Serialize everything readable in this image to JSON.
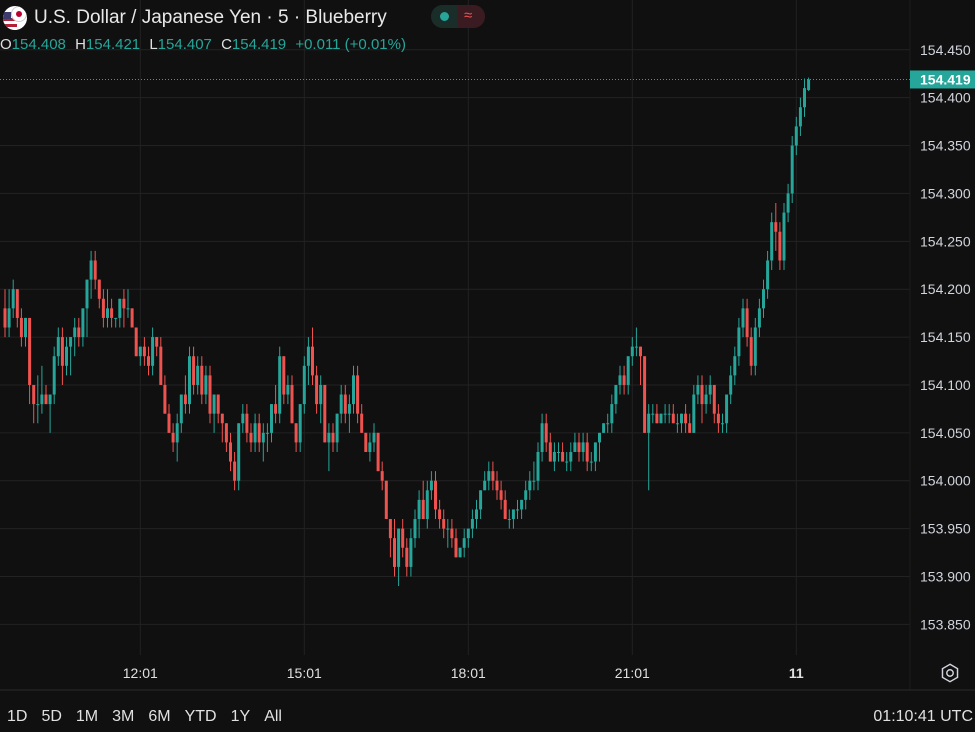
{
  "header": {
    "title": "U.S. Dollar / Japanese Yen · 5 · Blueberry",
    "status_icon": "market-open-dot",
    "extra_icon": "tilde-wave-icon",
    "ohlc": {
      "open_label": "O",
      "open": "154.408",
      "high_label": "H",
      "high": "154.421",
      "low_label": "L",
      "low": "154.407",
      "close_label": "C",
      "close": "154.419",
      "change": "+0.011 (+0.01%)"
    }
  },
  "colors": {
    "background": "#101010",
    "up": "#26a69a",
    "down": "#ef5350",
    "grid": "#222222",
    "text": "#d1d4dc"
  },
  "chart_data": {
    "type": "candlestick",
    "symbol": "USDJPY",
    "interval": "5",
    "current_price_label": "154.419",
    "y_axis_ticks": [
      "154.450",
      "154.400",
      "154.350",
      "154.300",
      "154.250",
      "154.200",
      "154.150",
      "154.100",
      "154.050",
      "154.000",
      "153.950",
      "153.900",
      "153.850"
    ],
    "y_tick_values": [
      154.45,
      154.4,
      154.35,
      154.3,
      154.25,
      154.2,
      154.15,
      154.1,
      154.05,
      154.0,
      153.95,
      153.9,
      153.85
    ],
    "ylim": [
      153.818,
      154.502
    ],
    "x_axis_ticks": [
      {
        "label": "12:01",
        "index": 33
      },
      {
        "label": "15:01",
        "index": 73
      },
      {
        "label": "18:01",
        "index": 113
      },
      {
        "label": "21:01",
        "index": 153
      },
      {
        "label": "11",
        "index": 193
      }
    ],
    "candles": [
      [
        154.18,
        154.2,
        154.15,
        154.16
      ],
      [
        154.16,
        154.2,
        154.15,
        154.18
      ],
      [
        154.18,
        154.21,
        154.17,
        154.2
      ],
      [
        154.2,
        154.2,
        154.16,
        154.17
      ],
      [
        154.17,
        154.18,
        154.14,
        154.15
      ],
      [
        154.15,
        154.17,
        154.14,
        154.17
      ],
      [
        154.17,
        154.17,
        154.08,
        154.1
      ],
      [
        154.1,
        154.1,
        154.06,
        154.08
      ],
      [
        154.08,
        154.11,
        154.06,
        154.08
      ],
      [
        154.08,
        154.12,
        154.07,
        154.09
      ],
      [
        154.09,
        154.1,
        154.08,
        154.08
      ],
      [
        154.08,
        154.09,
        154.05,
        154.09
      ],
      [
        154.09,
        154.14,
        154.08,
        154.13
      ],
      [
        154.13,
        154.16,
        154.12,
        154.15
      ],
      [
        154.15,
        154.16,
        154.1,
        154.12
      ],
      [
        154.12,
        154.15,
        154.11,
        154.14
      ],
      [
        154.14,
        154.15,
        154.11,
        154.15
      ],
      [
        154.15,
        154.17,
        154.13,
        154.16
      ],
      [
        154.16,
        154.17,
        154.14,
        154.15
      ],
      [
        154.15,
        154.18,
        154.14,
        154.18
      ],
      [
        154.18,
        154.21,
        154.15,
        154.21
      ],
      [
        154.21,
        154.24,
        154.19,
        154.23
      ],
      [
        154.23,
        154.24,
        154.2,
        154.21
      ],
      [
        154.21,
        154.21,
        154.18,
        154.19
      ],
      [
        154.19,
        154.2,
        154.16,
        154.17
      ],
      [
        154.17,
        154.2,
        154.16,
        154.18
      ],
      [
        154.18,
        154.19,
        154.16,
        154.17
      ],
      [
        154.17,
        154.17,
        154.16,
        154.17
      ],
      [
        154.17,
        154.19,
        154.16,
        154.19
      ],
      [
        154.19,
        154.2,
        154.16,
        154.18
      ],
      [
        154.18,
        154.2,
        154.17,
        154.18
      ],
      [
        154.18,
        154.18,
        154.16,
        154.16
      ],
      [
        154.16,
        154.16,
        154.13,
        154.13
      ],
      [
        154.13,
        154.14,
        154.12,
        154.14
      ],
      [
        154.14,
        154.15,
        154.12,
        154.13
      ],
      [
        154.13,
        154.14,
        154.11,
        154.12
      ],
      [
        154.12,
        154.16,
        154.11,
        154.15
      ],
      [
        154.15,
        154.15,
        154.13,
        154.14
      ],
      [
        154.14,
        154.15,
        154.1,
        154.1
      ],
      [
        154.1,
        154.11,
        154.07,
        154.07
      ],
      [
        154.07,
        154.08,
        154.05,
        154.05
      ],
      [
        154.05,
        154.06,
        154.03,
        154.04
      ],
      [
        154.04,
        154.07,
        154.02,
        154.06
      ],
      [
        154.06,
        154.09,
        154.05,
        154.09
      ],
      [
        154.09,
        154.11,
        154.07,
        154.08
      ],
      [
        154.08,
        154.14,
        154.07,
        154.13
      ],
      [
        154.13,
        154.14,
        154.09,
        154.1
      ],
      [
        154.1,
        154.13,
        154.09,
        154.12
      ],
      [
        154.12,
        154.13,
        154.08,
        154.09
      ],
      [
        154.09,
        154.12,
        154.08,
        154.11
      ],
      [
        154.11,
        154.12,
        154.06,
        154.07
      ],
      [
        154.07,
        154.09,
        154.05,
        154.09
      ],
      [
        154.09,
        154.09,
        154.06,
        154.07
      ],
      [
        154.07,
        154.07,
        154.04,
        154.06
      ],
      [
        154.06,
        154.06,
        154.03,
        154.04
      ],
      [
        154.04,
        154.05,
        154.01,
        154.02
      ],
      [
        154.02,
        154.03,
        153.99,
        154.0
      ],
      [
        154.0,
        154.06,
        153.99,
        154.06
      ],
      [
        154.06,
        154.08,
        154.05,
        154.07
      ],
      [
        154.07,
        154.08,
        154.04,
        154.05
      ],
      [
        154.05,
        154.06,
        154.03,
        154.04
      ],
      [
        154.04,
        154.07,
        154.03,
        154.06
      ],
      [
        154.06,
        154.07,
        154.03,
        154.04
      ],
      [
        154.04,
        154.06,
        154.02,
        154.05
      ],
      [
        154.05,
        154.06,
        154.03,
        154.05
      ],
      [
        154.05,
        154.08,
        154.04,
        154.08
      ],
      [
        154.08,
        154.1,
        154.06,
        154.07
      ],
      [
        154.07,
        154.14,
        154.06,
        154.13
      ],
      [
        154.13,
        154.13,
        154.08,
        154.09
      ],
      [
        154.09,
        154.11,
        154.08,
        154.1
      ],
      [
        154.1,
        154.11,
        154.06,
        154.06
      ],
      [
        154.06,
        154.06,
        154.03,
        154.04
      ],
      [
        154.04,
        154.08,
        154.03,
        154.08
      ],
      [
        154.08,
        154.13,
        154.07,
        154.12
      ],
      [
        154.12,
        154.15,
        154.1,
        154.14
      ],
      [
        154.14,
        154.16,
        154.1,
        154.11
      ],
      [
        154.11,
        154.12,
        154.07,
        154.08
      ],
      [
        154.08,
        154.11,
        154.06,
        154.1
      ],
      [
        154.1,
        154.1,
        154.04,
        154.04
      ],
      [
        154.04,
        154.06,
        154.01,
        154.05
      ],
      [
        154.05,
        154.06,
        154.03,
        154.04
      ],
      [
        154.04,
        154.07,
        154.03,
        154.07
      ],
      [
        154.07,
        154.1,
        154.06,
        154.09
      ],
      [
        154.09,
        154.1,
        154.06,
        154.07
      ],
      [
        154.07,
        154.09,
        154.05,
        154.08
      ],
      [
        154.08,
        154.12,
        154.07,
        154.11
      ],
      [
        154.11,
        154.12,
        154.06,
        154.07
      ],
      [
        154.07,
        154.08,
        154.05,
        154.05
      ],
      [
        154.05,
        154.05,
        154.03,
        154.03
      ],
      [
        154.03,
        154.05,
        154.02,
        154.04
      ],
      [
        154.04,
        154.06,
        154.03,
        154.05
      ],
      [
        154.05,
        154.05,
        154.01,
        154.01
      ],
      [
        154.01,
        154.02,
        153.99,
        154.0
      ],
      [
        154.0,
        154.0,
        153.96,
        153.96
      ],
      [
        153.96,
        153.96,
        153.92,
        153.94
      ],
      [
        153.94,
        153.96,
        153.9,
        153.91
      ],
      [
        153.91,
        153.95,
        153.89,
        153.95
      ],
      [
        153.95,
        153.96,
        153.92,
        153.93
      ],
      [
        153.93,
        153.94,
        153.9,
        153.91
      ],
      [
        153.91,
        153.95,
        153.9,
        153.94
      ],
      [
        153.94,
        153.97,
        153.93,
        153.96
      ],
      [
        153.96,
        153.99,
        153.94,
        153.98
      ],
      [
        153.98,
        154.0,
        153.96,
        153.96
      ],
      [
        153.96,
        154.0,
        153.95,
        153.99
      ],
      [
        153.99,
        154.01,
        153.98,
        154.0
      ],
      [
        154.0,
        154.01,
        153.96,
        153.97
      ],
      [
        153.97,
        153.98,
        153.95,
        153.96
      ],
      [
        153.96,
        153.97,
        153.94,
        153.95
      ],
      [
        153.95,
        153.96,
        153.93,
        153.95
      ],
      [
        153.95,
        153.96,
        153.93,
        153.94
      ],
      [
        153.94,
        153.95,
        153.92,
        153.92
      ],
      [
        153.92,
        153.93,
        153.92,
        153.93
      ],
      [
        153.93,
        153.95,
        153.92,
        153.94
      ],
      [
        153.94,
        153.95,
        153.93,
        153.95
      ],
      [
        153.95,
        153.97,
        153.94,
        153.96
      ],
      [
        153.96,
        153.98,
        153.95,
        153.97
      ],
      [
        153.97,
        153.99,
        153.96,
        153.99
      ],
      [
        153.99,
        154.01,
        153.99,
        154.0
      ],
      [
        154.0,
        154.02,
        153.99,
        154.01
      ],
      [
        154.01,
        154.02,
        153.99,
        154.0
      ],
      [
        154.0,
        154.01,
        153.98,
        153.99
      ],
      [
        153.99,
        154.0,
        153.97,
        153.98
      ],
      [
        153.98,
        153.99,
        153.96,
        153.96
      ],
      [
        153.96,
        153.97,
        153.95,
        153.96
      ],
      [
        153.96,
        153.97,
        153.95,
        153.97
      ],
      [
        153.97,
        153.98,
        153.96,
        153.97
      ],
      [
        153.97,
        153.98,
        153.96,
        153.98
      ],
      [
        153.98,
        154.0,
        153.97,
        153.99
      ],
      [
        153.99,
        154.01,
        153.98,
        154.0
      ],
      [
        154.0,
        154.02,
        153.99,
        154.0
      ],
      [
        154.0,
        154.04,
        153.99,
        154.03
      ],
      [
        154.03,
        154.07,
        154.02,
        154.06
      ],
      [
        154.06,
        154.07,
        154.03,
        154.04
      ],
      [
        154.04,
        154.05,
        154.02,
        154.02
      ],
      [
        154.02,
        154.04,
        154.01,
        154.03
      ],
      [
        154.03,
        154.04,
        154.02,
        154.03
      ],
      [
        154.03,
        154.04,
        154.02,
        154.02
      ],
      [
        154.02,
        154.03,
        154.01,
        154.02
      ],
      [
        154.02,
        154.04,
        154.01,
        154.03
      ],
      [
        154.03,
        154.05,
        154.03,
        154.04
      ],
      [
        154.04,
        154.05,
        154.02,
        154.03
      ],
      [
        154.03,
        154.05,
        154.02,
        154.04
      ],
      [
        154.04,
        154.05,
        154.01,
        154.02
      ],
      [
        154.02,
        154.03,
        154.01,
        154.02
      ],
      [
        154.02,
        154.04,
        154.01,
        154.04
      ],
      [
        154.04,
        154.05,
        154.02,
        154.05
      ],
      [
        154.05,
        154.06,
        154.05,
        154.06
      ],
      [
        154.06,
        154.07,
        154.05,
        154.06
      ],
      [
        154.06,
        154.09,
        154.05,
        154.08
      ],
      [
        154.08,
        154.1,
        154.07,
        154.1
      ],
      [
        154.1,
        154.12,
        154.09,
        154.11
      ],
      [
        154.11,
        154.12,
        154.09,
        154.1
      ],
      [
        154.1,
        154.13,
        154.09,
        154.13
      ],
      [
        154.13,
        154.15,
        154.12,
        154.14
      ],
      [
        154.14,
        154.16,
        154.13,
        154.14
      ],
      [
        154.14,
        154.14,
        154.1,
        154.13
      ],
      [
        154.13,
        154.13,
        154.05,
        154.05
      ],
      [
        154.05,
        154.08,
        153.99,
        154.07
      ],
      [
        154.07,
        154.08,
        154.06,
        154.07
      ],
      [
        154.07,
        154.08,
        154.06,
        154.06
      ],
      [
        154.06,
        154.07,
        154.06,
        154.07
      ],
      [
        154.07,
        154.08,
        154.06,
        154.07
      ],
      [
        154.07,
        154.08,
        154.06,
        154.07
      ],
      [
        154.07,
        154.08,
        154.06,
        154.06
      ],
      [
        154.06,
        154.07,
        154.05,
        154.06
      ],
      [
        154.06,
        154.07,
        154.05,
        154.07
      ],
      [
        154.07,
        154.08,
        154.05,
        154.06
      ],
      [
        154.06,
        154.07,
        154.05,
        154.05
      ],
      [
        154.05,
        154.1,
        154.05,
        154.09
      ],
      [
        154.09,
        154.11,
        154.08,
        154.1
      ],
      [
        154.1,
        154.11,
        154.06,
        154.08
      ],
      [
        154.08,
        154.1,
        154.07,
        154.09
      ],
      [
        154.09,
        154.11,
        154.08,
        154.1
      ],
      [
        154.1,
        154.1,
        154.06,
        154.07
      ],
      [
        154.07,
        154.08,
        154.05,
        154.06
      ],
      [
        154.06,
        154.07,
        154.05,
        154.06
      ],
      [
        154.06,
        154.09,
        154.05,
        154.09
      ],
      [
        154.09,
        154.12,
        154.08,
        154.11
      ],
      [
        154.11,
        154.14,
        154.1,
        154.13
      ],
      [
        154.13,
        154.17,
        154.12,
        154.16
      ],
      [
        154.16,
        154.19,
        154.15,
        154.18
      ],
      [
        154.18,
        154.19,
        154.14,
        154.15
      ],
      [
        154.15,
        154.16,
        154.11,
        154.12
      ],
      [
        154.12,
        154.17,
        154.11,
        154.16
      ],
      [
        154.16,
        154.19,
        154.15,
        154.18
      ],
      [
        154.18,
        154.21,
        154.17,
        154.2
      ],
      [
        154.2,
        154.24,
        154.19,
        154.23
      ],
      [
        154.23,
        154.28,
        154.22,
        154.27
      ],
      [
        154.27,
        154.29,
        154.24,
        154.26
      ],
      [
        154.26,
        154.27,
        154.22,
        154.23
      ],
      [
        154.23,
        154.29,
        154.22,
        154.28
      ],
      [
        154.28,
        154.31,
        154.27,
        154.3
      ],
      [
        154.3,
        154.36,
        154.29,
        154.35
      ],
      [
        154.35,
        154.38,
        154.34,
        154.37
      ],
      [
        154.37,
        154.4,
        154.36,
        154.39
      ],
      [
        154.39,
        154.42,
        154.38,
        154.41
      ],
      [
        154.408,
        154.421,
        154.407,
        154.419
      ]
    ]
  },
  "range_buttons": [
    "1D",
    "5D",
    "1M",
    "3M",
    "6M",
    "YTD",
    "1Y",
    "All"
  ],
  "clock": "01:10:41 UTC"
}
